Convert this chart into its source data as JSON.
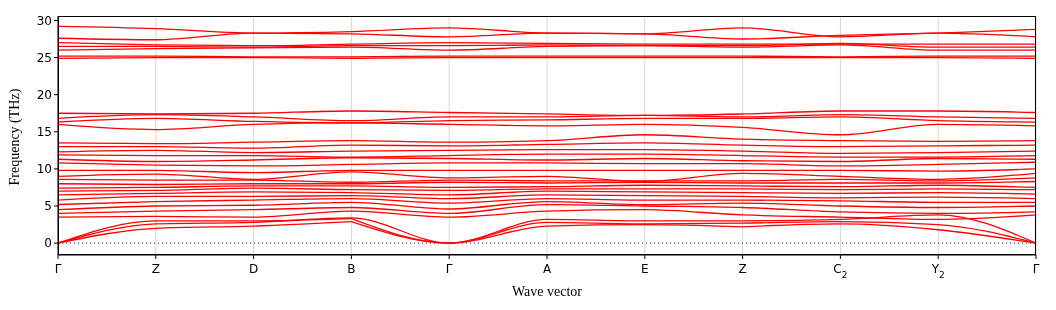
{
  "chart_data": {
    "type": "line",
    "xlabel": "Wave vector",
    "ylabel": "Frequency (THz)",
    "categories": [
      "Γ",
      "Z",
      "D",
      "B",
      "Γ",
      "A",
      "E",
      "Z",
      "C$_{2}$",
      "Y$_{2}$",
      "Γ"
    ],
    "ylim": [
      -1.6,
      30.6
    ],
    "yticks": [
      0,
      5,
      10,
      15,
      20,
      25,
      30
    ],
    "grid": "x",
    "ref_lines": [
      {
        "axis": "y",
        "value": 0,
        "color": "#0000ff",
        "line_style": "dotted"
      }
    ],
    "series": [
      {
        "color": "#ff0000",
        "values": [
          0,
          2.0,
          2.3,
          2.9,
          null,
          null,
          null,
          null,
          null,
          null,
          null
        ]
      },
      {
        "color": "#ff0000",
        "values": [
          null,
          null,
          null,
          2.9,
          0,
          2.3,
          2.5,
          2.2,
          null,
          null,
          null
        ]
      },
      {
        "color": "#ff0000",
        "values": [
          null,
          null,
          null,
          null,
          null,
          null,
          null,
          2.2,
          2.6,
          1.8,
          0
        ]
      },
      {
        "color": "#ff0000",
        "values": [
          0,
          2.6,
          2.8,
          3.4,
          0,
          2.8,
          2.6,
          2.7,
          2.9,
          2.5,
          0
        ]
      },
      {
        "color": "#ff0000",
        "values": [
          0,
          3.0,
          3.0,
          3.3,
          null,
          null,
          null,
          null,
          null,
          null,
          null
        ]
      },
      {
        "color": "#ff0000",
        "values": [
          null,
          null,
          null,
          3.3,
          0,
          3.2,
          3.0,
          3.0,
          null,
          null,
          null
        ]
      },
      {
        "color": "#ff0000",
        "values": [
          null,
          null,
          null,
          null,
          null,
          null,
          null,
          3.0,
          3.2,
          3.8,
          0
        ]
      },
      {
        "color": "#ff0000",
        "values": [
          3.5,
          3.6,
          3.5,
          4.3,
          3.5,
          4.3,
          4.5,
          3.8,
          3.5,
          3.2,
          3.8
        ]
      },
      {
        "color": "#ff0000",
        "values": [
          4.0,
          4.3,
          4.5,
          4.8,
          4.0,
          5.2,
          5.0,
          4.8,
          4.2,
          4.0,
          4.2
        ]
      },
      {
        "color": "#ff0000",
        "values": [
          4.5,
          5.0,
          5.1,
          5.5,
          4.6,
          5.6,
          5.2,
          5.4,
          5.0,
          4.8,
          5.0
        ]
      },
      {
        "color": "#ff0000",
        "values": [
          5.2,
          5.6,
          5.8,
          6.0,
          5.4,
          6.0,
          5.8,
          5.8,
          5.7,
          5.5,
          5.5
        ]
      },
      {
        "color": "#ff0000",
        "values": [
          5.8,
          6.3,
          6.3,
          6.4,
          6.0,
          6.5,
          6.4,
          6.3,
          6.1,
          6.2,
          6.0
        ]
      },
      {
        "color": "#ff0000",
        "values": [
          6.5,
          6.7,
          6.9,
          6.8,
          6.5,
          7.0,
          6.9,
          6.8,
          6.7,
          6.8,
          6.6
        ]
      },
      {
        "color": "#ff0000",
        "values": [
          7.0,
          7.1,
          7.4,
          7.2,
          7.1,
          7.3,
          7.3,
          7.3,
          7.2,
          7.3,
          7.2
        ]
      },
      {
        "color": "#ff0000",
        "values": [
          7.4,
          7.5,
          7.7,
          7.7,
          7.5,
          7.6,
          7.8,
          7.7,
          7.6,
          7.8,
          7.5
        ]
      },
      {
        "color": "#ff0000",
        "values": [
          8.0,
          7.9,
          8.0,
          8.0,
          8.2,
          8.1,
          8.2,
          8.1,
          8.1,
          8.1,
          8.3
        ]
      },
      {
        "color": "#ff0000",
        "values": [
          8.6,
          8.5,
          8.5,
          8.2,
          8.5,
          8.4,
          8.4,
          8.4,
          8.6,
          8.4,
          8.8
        ]
      },
      {
        "color": "#ff0000",
        "values": [
          9.0,
          9.3,
          8.6,
          9.6,
          8.8,
          9.0,
          8.3,
          9.4,
          9.0,
          8.6,
          9.4
        ]
      },
      {
        "color": "#ff0000",
        "values": [
          9.8,
          9.8,
          9.5,
          9.8,
          9.8,
          9.8,
          9.8,
          9.8,
          9.8,
          9.7,
          10.0
        ]
      },
      {
        "color": "#ff0000",
        "values": [
          10.8,
          10.5,
          10.4,
          10.6,
          10.8,
          10.8,
          10.7,
          10.7,
          10.4,
          10.6,
          10.9
        ]
      },
      {
        "color": "#ff0000",
        "values": [
          11.3,
          11.0,
          11.2,
          11.5,
          11.4,
          11.2,
          11.4,
          11.1,
          11.0,
          11.4,
          11.3
        ]
      },
      {
        "color": "#ff0000",
        "values": [
          11.9,
          11.8,
          11.8,
          11.6,
          11.8,
          12.0,
          12.0,
          11.8,
          11.6,
          11.6,
          11.8
        ]
      },
      {
        "color": "#ff0000",
        "values": [
          12.3,
          12.5,
          12.2,
          12.4,
          12.5,
          12.6,
          12.6,
          12.4,
          12.1,
          12.2,
          12.4
        ]
      },
      {
        "color": "#ff0000",
        "values": [
          13.0,
          13.0,
          12.8,
          13.2,
          13.1,
          13.3,
          13.5,
          13.2,
          13.0,
          13.1,
          13.2
        ]
      },
      {
        "color": "#ff0000",
        "values": [
          13.5,
          13.4,
          13.6,
          13.8,
          13.6,
          13.8,
          14.6,
          14.0,
          13.8,
          13.7,
          13.8
        ]
      },
      {
        "color": "#ff0000",
        "values": [
          16.0,
          15.3,
          16.0,
          16.2,
          16.0,
          15.8,
          16.0,
          15.6,
          14.6,
          16.0,
          15.8
        ]
      },
      {
        "color": "#ff0000",
        "values": [
          16.3,
          16.8,
          16.4,
          16.2,
          16.5,
          16.6,
          16.8,
          16.8,
          17.0,
          16.5,
          16.3
        ]
      },
      {
        "color": "#ff0000",
        "values": [
          16.8,
          17.3,
          17.0,
          16.5,
          17.0,
          17.0,
          17.2,
          17.0,
          17.3,
          17.0,
          16.8
        ]
      },
      {
        "color": "#ff0000",
        "values": [
          17.5,
          17.4,
          17.5,
          17.8,
          17.6,
          17.4,
          17.2,
          17.4,
          17.8,
          17.8,
          17.6
        ]
      },
      {
        "color": "#ff0000",
        "values": [
          24.9,
          25.0,
          25.0,
          24.9,
          25.0,
          25.0,
          25.0,
          25.0,
          25.0,
          25.0,
          24.9
        ]
      },
      {
        "color": "#ff0000",
        "values": [
          25.2,
          25.2,
          25.1,
          25.1,
          25.2,
          25.2,
          25.2,
          25.2,
          25.1,
          25.2,
          25.2
        ]
      },
      {
        "color": "#ff0000",
        "values": [
          26.0,
          26.2,
          26.3,
          26.4,
          26.0,
          26.5,
          26.6,
          26.4,
          26.7,
          26.0,
          26.0
        ]
      },
      {
        "color": "#ff0000",
        "values": [
          26.5,
          26.5,
          26.4,
          26.6,
          26.6,
          26.7,
          26.6,
          26.6,
          26.9,
          26.4,
          26.4
        ]
      },
      {
        "color": "#ff0000",
        "values": [
          27.0,
          26.7,
          26.6,
          26.8,
          27.0,
          26.9,
          26.8,
          26.8,
          26.8,
          26.8,
          26.8
        ]
      },
      {
        "color": "#ff0000",
        "values": [
          27.6,
          27.4,
          28.3,
          28.2,
          27.8,
          28.3,
          28.2,
          29.0,
          27.8,
          28.3,
          27.8
        ]
      },
      {
        "color": "#ff0000",
        "values": [
          29.2,
          28.9,
          28.3,
          28.5,
          29.0,
          28.3,
          28.2,
          27.5,
          28.0,
          28.3,
          28.8
        ]
      }
    ]
  }
}
